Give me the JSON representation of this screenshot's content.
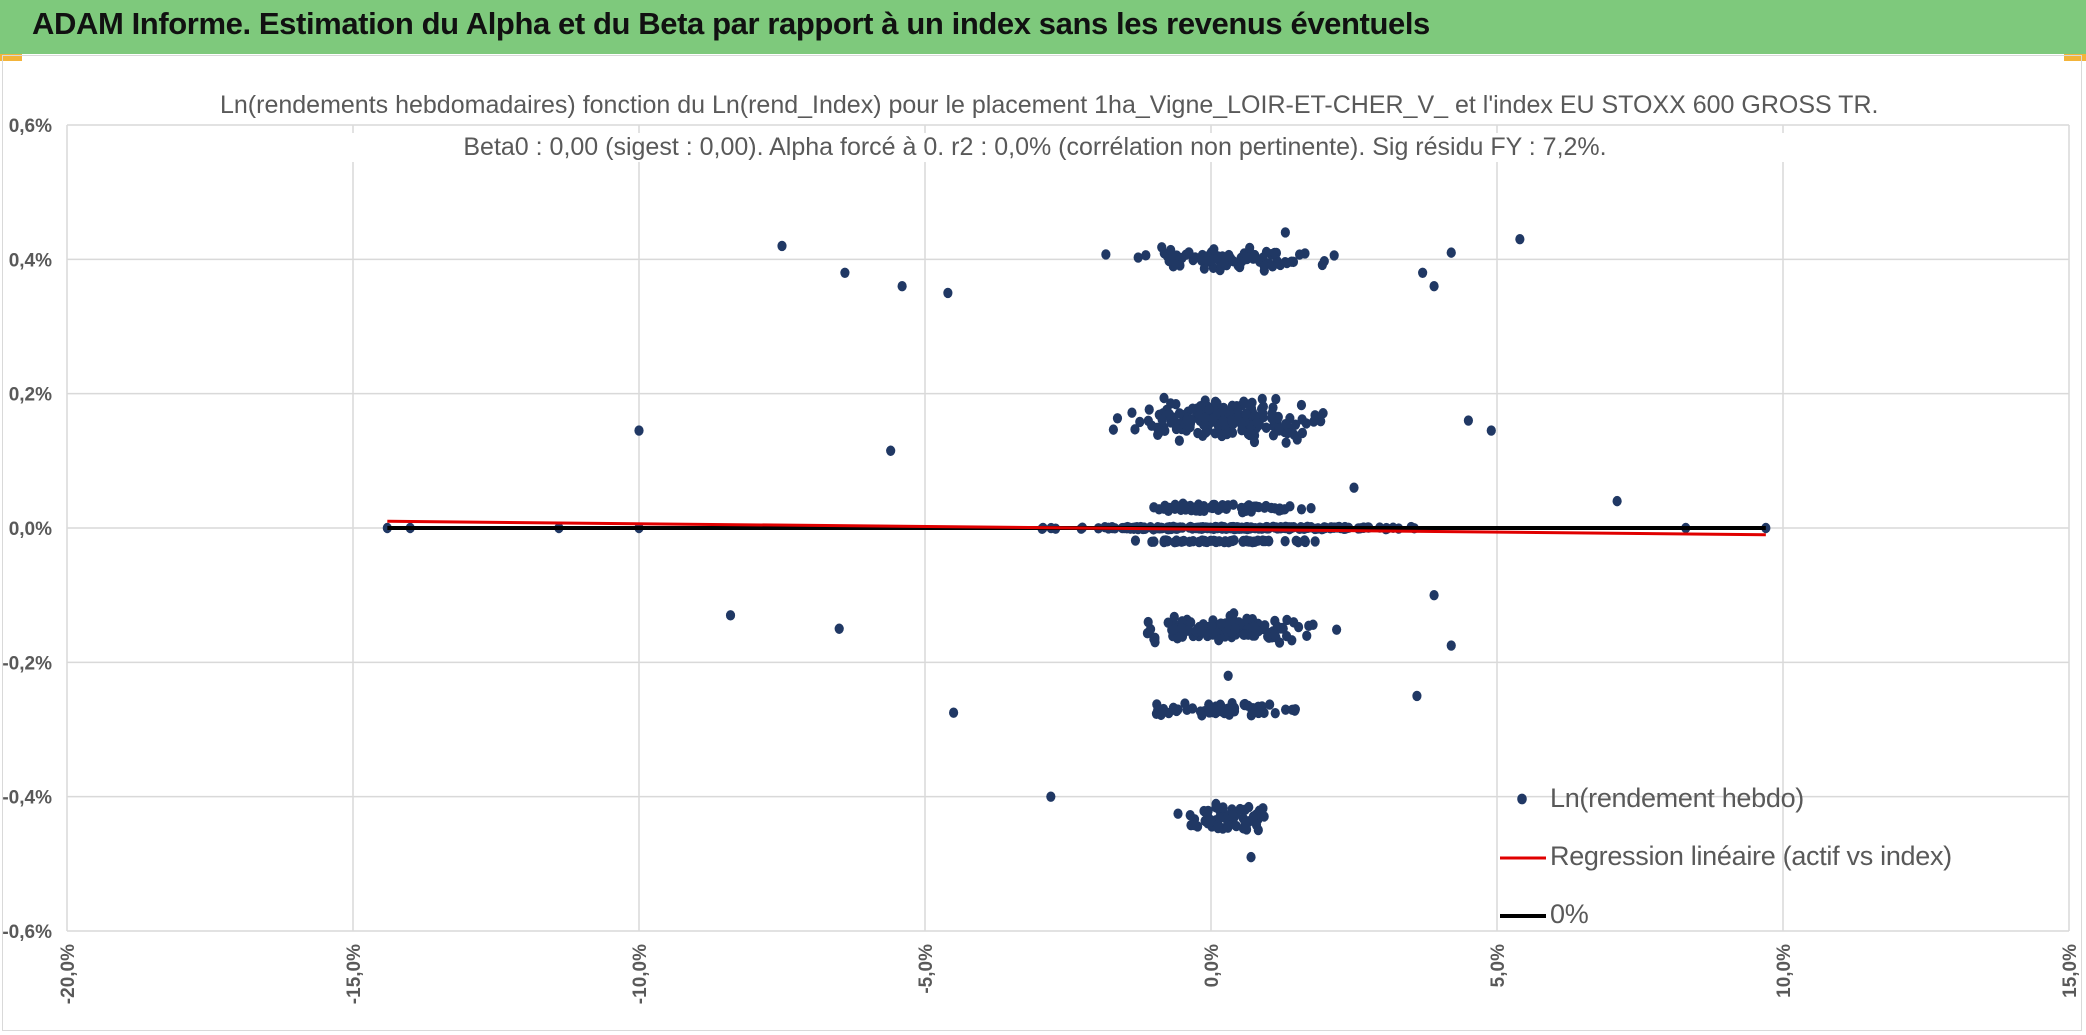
{
  "header": {
    "title": "ADAM Informe. Estimation du Alpha et du Beta par rapport à un index sans les revenus éventuels"
  },
  "colors": {
    "header_bg": "#7ec97c",
    "points": "#203864",
    "regression": "#e00000",
    "zero_line": "#000000",
    "grid": "#d9d9d9",
    "text": "#595959"
  },
  "chart_data": {
    "type": "scatter",
    "title": "Ln(rendements hebdomadaires) fonction du Ln(rend_Index) pour le placement 1ha_Vigne_LOIR-ET-CHER_V_ et l'index EU STOXX 600 GROSS TR.",
    "subtitle": "Beta0 : 0,00 (sigest : 0,00). Alpha forcé à 0. r2 : 0,0% (corrélation non pertinente). Sig résidu FY : 7,2%.",
    "xlabel": "",
    "ylabel": "",
    "xlim": [
      -0.2,
      0.15
    ],
    "ylim": [
      -0.006,
      0.006
    ],
    "x_ticks": [
      "-20,0%",
      "-15,0%",
      "-10,0%",
      "-5,0%",
      "0,0%",
      "5,0%",
      "10,0%",
      "15,0%"
    ],
    "y_ticks": [
      "0,6%",
      "0,4%",
      "0,2%",
      "0,0%",
      "-0,2%",
      "-0,4%",
      "-0,6%"
    ],
    "grid": "on",
    "legend_position": "bottom-right",
    "series": [
      {
        "name": "Ln(rendement hebdo)",
        "kind": "scatter",
        "color": "#203864",
        "sample_points": [
          [
            -0.075,
            0.0042
          ],
          [
            0.054,
            0.0043
          ],
          [
            -0.064,
            0.0038
          ],
          [
            -0.054,
            0.0036
          ],
          [
            -0.046,
            0.0035
          ],
          [
            0.042,
            0.0041
          ],
          [
            0.037,
            0.0038
          ],
          [
            0.039,
            0.0036
          ],
          [
            -0.1,
            0.00145
          ],
          [
            -0.056,
            0.00115
          ],
          [
            0.045,
            0.0016
          ],
          [
            0.049,
            0.00145
          ],
          [
            -0.084,
            -0.0013
          ],
          [
            -0.065,
            -0.0015
          ],
          [
            -0.045,
            -0.00275
          ],
          [
            0.042,
            -0.00175
          ],
          [
            0.039,
            -0.001
          ],
          [
            0.071,
            0.0004
          ],
          [
            -0.028,
            -0.004
          ],
          [
            0.007,
            -0.0049
          ],
          [
            -0.144,
            0.0
          ],
          [
            -0.14,
            0.0
          ],
          [
            -0.114,
            0.0
          ],
          [
            -0.1,
            0.0
          ],
          [
            0.083,
            0.0
          ],
          [
            0.097,
            0.0
          ],
          [
            0.013,
            0.0044
          ],
          [
            0.003,
            -0.0022
          ],
          [
            0.036,
            -0.0025
          ],
          [
            0.025,
            0.0006
          ]
        ]
      },
      {
        "name": "Regression linéaire (actif vs index)",
        "kind": "line",
        "color": "#e00000",
        "x": [
          -0.144,
          0.097
        ],
        "y": [
          0.0001,
          -0.0001
        ]
      },
      {
        "name": "0%",
        "kind": "line",
        "color": "#000000",
        "x": [
          -0.144,
          0.097
        ],
        "y": [
          0.0,
          0.0
        ]
      }
    ]
  }
}
